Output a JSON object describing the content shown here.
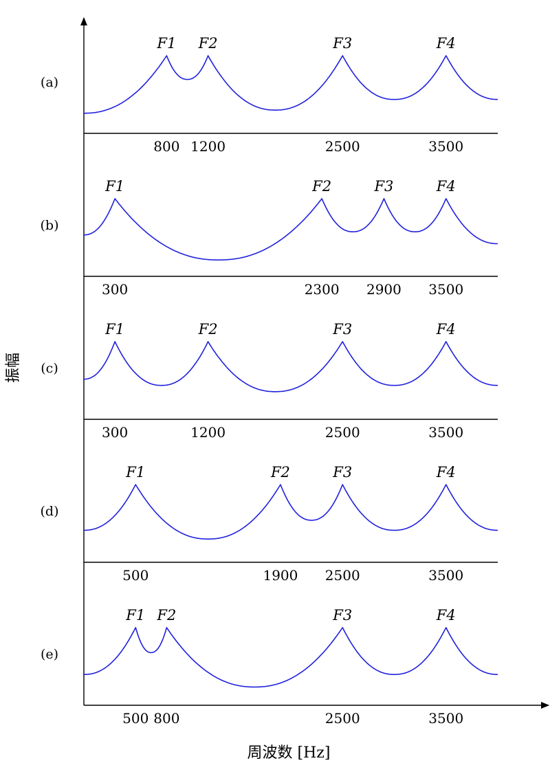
{
  "chart_data": {
    "type": "line",
    "title": "",
    "ylabel": "振幅",
    "xlabel": "周波数 [Hz]",
    "xlim": [
      0,
      4000
    ],
    "series_color": "#2020dd",
    "axis_color": "#000000",
    "panels": [
      {
        "label": "(a)",
        "formants": [
          {
            "name": "F1",
            "freq": 800
          },
          {
            "name": "F2",
            "freq": 1200
          },
          {
            "name": "F3",
            "freq": 2500
          },
          {
            "name": "F4",
            "freq": 3500
          }
        ],
        "ticks": [
          {
            "value": 800,
            "label": "800"
          },
          {
            "value": 1200,
            "label": "1200"
          },
          {
            "value": 2500,
            "label": "2500"
          },
          {
            "value": 3500,
            "label": "3500"
          }
        ],
        "envelope": {
          "start": 0.08,
          "valleys": [
            0.62,
            0.13,
            0.3
          ],
          "end": 0.3
        }
      },
      {
        "label": "(b)",
        "formants": [
          {
            "name": "F1",
            "freq": 300
          },
          {
            "name": "F2",
            "freq": 2300
          },
          {
            "name": "F3",
            "freq": 2900
          },
          {
            "name": "F4",
            "freq": 3500
          }
        ],
        "ticks": [
          {
            "value": 300,
            "label": "300"
          },
          {
            "value": 2300,
            "label": "2300"
          },
          {
            "value": 2900,
            "label": "2900"
          },
          {
            "value": 3500,
            "label": "3500"
          }
        ],
        "envelope": {
          "start": 0.42,
          "valleys": [
            0.02,
            0.47,
            0.47
          ],
          "end": 0.28
        }
      },
      {
        "label": "(c)",
        "formants": [
          {
            "name": "F1",
            "freq": 300
          },
          {
            "name": "F2",
            "freq": 1200
          },
          {
            "name": "F3",
            "freq": 2500
          },
          {
            "name": "F4",
            "freq": 3500
          }
        ],
        "ticks": [
          {
            "value": 300,
            "label": "300"
          },
          {
            "value": 1200,
            "label": "1200"
          },
          {
            "value": 2500,
            "label": "2500"
          },
          {
            "value": 3500,
            "label": "3500"
          }
        ],
        "envelope": {
          "start": 0.4,
          "valleys": [
            0.3,
            0.2,
            0.3
          ],
          "end": 0.3
        }
      },
      {
        "label": "(d)",
        "formants": [
          {
            "name": "F1",
            "freq": 500
          },
          {
            "name": "F2",
            "freq": 1900
          },
          {
            "name": "F3",
            "freq": 2500
          },
          {
            "name": "F4",
            "freq": 3500
          }
        ],
        "ticks": [
          {
            "value": 500,
            "label": "500"
          },
          {
            "value": 1900,
            "label": "1900"
          },
          {
            "value": 2500,
            "label": "2500"
          },
          {
            "value": 3500,
            "label": "3500"
          }
        ],
        "envelope": {
          "start": 0.27,
          "valleys": [
            0.13,
            0.43,
            0.27
          ],
          "end": 0.27
        }
      },
      {
        "label": "(e)",
        "formants": [
          {
            "name": "F1",
            "freq": 500
          },
          {
            "name": "F2",
            "freq": 800
          },
          {
            "name": "F3",
            "freq": 2500
          },
          {
            "name": "F4",
            "freq": 3500
          }
        ],
        "ticks": [
          {
            "value": 500,
            "label": "500"
          },
          {
            "value": 800,
            "label": "800"
          },
          {
            "value": 2500,
            "label": "2500"
          },
          {
            "value": 3500,
            "label": "3500"
          }
        ],
        "envelope": {
          "start": 0.25,
          "valleys": [
            0.6,
            0.05,
            0.25
          ],
          "end": 0.25
        }
      }
    ]
  }
}
